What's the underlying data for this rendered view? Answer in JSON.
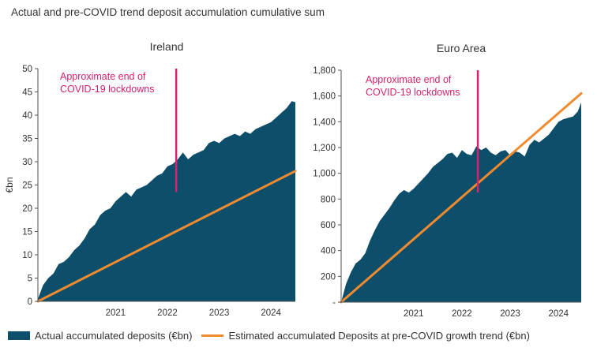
{
  "figure": {
    "title": "Actual and pre-COVID trend deposit accumulation cumulative sum"
  },
  "colors": {
    "actual_area": "#0d4f6b",
    "trend_line": "#f28a2e",
    "annotation": "#d6226e",
    "axis": "#555555",
    "text": "#333333"
  },
  "legend": {
    "position": "bottom",
    "items": [
      {
        "label": "Actual accumulated deposits (€bn)",
        "swatch": "area",
        "color": "#0d4f6b"
      },
      {
        "label": "Estimated accumulated Deposits at pre-COVID growth trend (€bn)",
        "swatch": "line",
        "color": "#f28a2e"
      }
    ]
  },
  "chart_data": [
    {
      "type": "area",
      "title": "Ireland",
      "ylabel": "€bn",
      "xlabel": "",
      "ylim": [
        0,
        50
      ],
      "yticks": [
        0,
        5,
        10,
        15,
        20,
        25,
        30,
        35,
        40,
        45,
        50
      ],
      "ytick_labels": [
        "0",
        "5",
        "10",
        "15",
        "20",
        "25",
        "30",
        "35",
        "40",
        "45",
        "50"
      ],
      "xlim": [
        2020.0,
        2024.97
      ],
      "xtick_labels": [
        {
          "label": "2021",
          "x": 2021.0
        },
        {
          "label": "2022",
          "x": 2022.0
        },
        {
          "label": "2023",
          "x": 2023.0
        },
        {
          "label": "2024",
          "x": 2024.0
        }
      ],
      "grid": false,
      "annotation": {
        "text_lines": [
          "Approximate end of",
          "COVID-19 lockdowns"
        ],
        "x": 2022.67,
        "y_top": 50,
        "y_bottom": 23.5
      },
      "series": [
        {
          "name": "Actual accumulated deposits (€bn)",
          "kind": "area",
          "x": [
            2020.0,
            2020.1,
            2020.2,
            2020.3,
            2020.4,
            2020.5,
            2020.6,
            2020.7,
            2020.8,
            2020.9,
            2021.0,
            2021.1,
            2021.2,
            2021.3,
            2021.4,
            2021.5,
            2021.6,
            2021.7,
            2021.8,
            2021.9,
            2022.0,
            2022.1,
            2022.2,
            2022.3,
            2022.4,
            2022.5,
            2022.6,
            2022.7,
            2022.8,
            2022.9,
            2023.0,
            2023.1,
            2023.2,
            2023.3,
            2023.4,
            2023.5,
            2023.6,
            2023.7,
            2023.8,
            2023.9,
            2024.0,
            2024.1,
            2024.2,
            2024.3,
            2024.4,
            2024.5,
            2024.6,
            2024.7,
            2024.8,
            2024.9,
            2024.97
          ],
          "y": [
            0.5,
            3.5,
            5.0,
            6.0,
            8.0,
            8.5,
            9.5,
            11.0,
            12.0,
            13.5,
            15.5,
            16.5,
            18.5,
            19.5,
            20.0,
            21.5,
            22.5,
            23.5,
            22.5,
            24.0,
            24.5,
            25.0,
            26.0,
            27.0,
            27.5,
            29.0,
            29.5,
            30.5,
            32.0,
            30.5,
            31.5,
            32.0,
            32.5,
            34.0,
            34.5,
            34.0,
            35.0,
            35.5,
            36.0,
            35.5,
            36.5,
            36.0,
            37.0,
            37.5,
            38.0,
            38.5,
            39.5,
            40.5,
            41.5,
            43.0,
            42.8
          ]
        },
        {
          "name": "Estimated accumulated Deposits at pre-COVID growth trend (€bn)",
          "kind": "line",
          "x": [
            2020.0,
            2024.97
          ],
          "y": [
            0.0,
            28.0
          ]
        }
      ]
    },
    {
      "type": "area",
      "title": "Euro Area",
      "ylabel": "",
      "xlabel": "",
      "ylim": [
        0,
        1800
      ],
      "yticks": [
        0,
        200,
        400,
        600,
        800,
        1000,
        1200,
        1400,
        1600,
        1800
      ],
      "ytick_labels": [
        "-",
        "200",
        "400",
        "600",
        "800",
        "1,000",
        "1,200",
        "1,400",
        "1,600",
        "1,800"
      ],
      "xlim": [
        2020.0,
        2024.97
      ],
      "xtick_labels": [
        {
          "label": "2021",
          "x": 2021.0
        },
        {
          "label": "2022",
          "x": 2022.0
        },
        {
          "label": "2023",
          "x": 2023.0
        },
        {
          "label": "2024",
          "x": 2024.0
        }
      ],
      "grid": false,
      "annotation": {
        "text_lines": [
          "Approximate end of",
          "COVID-19 lockdowns"
        ],
        "x": 2022.83,
        "y_top": 1800,
        "y_bottom": 850
      },
      "series": [
        {
          "name": "Actual accumulated deposits (€bn)",
          "kind": "area",
          "x": [
            2020.0,
            2020.1,
            2020.2,
            2020.3,
            2020.4,
            2020.5,
            2020.6,
            2020.7,
            2020.8,
            2020.9,
            2021.0,
            2021.1,
            2021.2,
            2021.3,
            2021.4,
            2021.5,
            2021.6,
            2021.7,
            2021.8,
            2021.9,
            2022.0,
            2022.1,
            2022.2,
            2022.3,
            2022.4,
            2022.5,
            2022.6,
            2022.7,
            2022.8,
            2022.9,
            2023.0,
            2023.1,
            2023.2,
            2023.3,
            2023.4,
            2023.5,
            2023.6,
            2023.7,
            2023.8,
            2023.9,
            2024.0,
            2024.1,
            2024.2,
            2024.3,
            2024.4,
            2024.5,
            2024.6,
            2024.7,
            2024.8,
            2024.9,
            2024.97
          ],
          "y": [
            0,
            140,
            230,
            300,
            330,
            380,
            480,
            560,
            630,
            680,
            730,
            790,
            840,
            870,
            850,
            880,
            920,
            960,
            1000,
            1050,
            1080,
            1110,
            1150,
            1160,
            1120,
            1180,
            1150,
            1140,
            1210,
            1180,
            1200,
            1160,
            1140,
            1170,
            1180,
            1140,
            1170,
            1160,
            1130,
            1220,
            1260,
            1240,
            1270,
            1300,
            1350,
            1400,
            1420,
            1430,
            1440,
            1480,
            1550
          ]
        },
        {
          "name": "Estimated accumulated Deposits at pre-COVID growth trend (€bn)",
          "kind": "line",
          "x": [
            2020.0,
            2024.97
          ],
          "y": [
            0,
            1620
          ]
        }
      ]
    }
  ]
}
